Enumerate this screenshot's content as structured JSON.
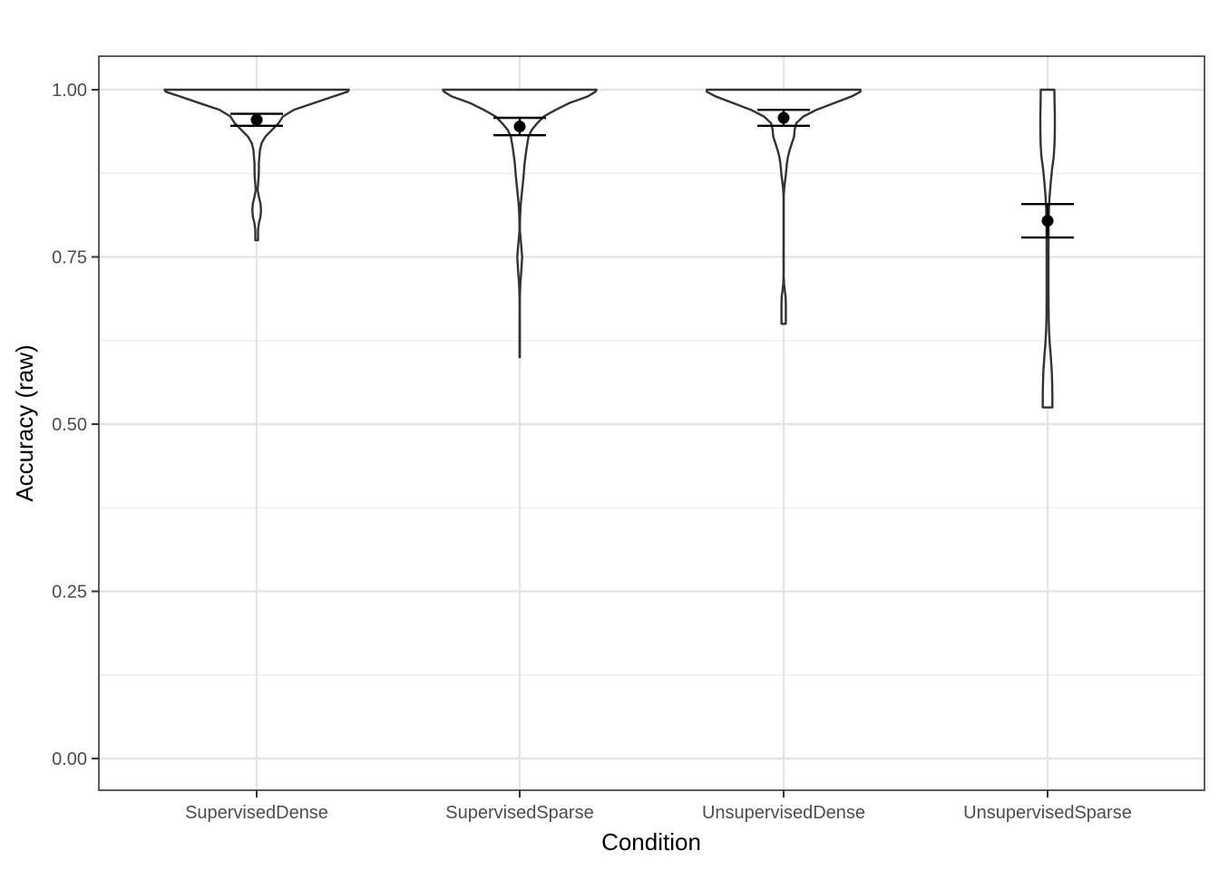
{
  "chart_data": {
    "type": "violin",
    "xlabel": "Condition",
    "ylabel": "Accuracy (raw)",
    "ylim": [
      -0.05,
      1.05
    ],
    "y_ticks": [
      0.0,
      0.25,
      0.5,
      0.75,
      1.0
    ],
    "y_tick_labels": [
      "0.00",
      "0.25",
      "0.50",
      "0.75",
      "1.00"
    ],
    "grid": true,
    "theme": "bw",
    "categories": [
      "SupervisedDense",
      "SupervisedSparse",
      "UnsupervisedDense",
      "UnsupervisedSparse"
    ],
    "summary": [
      {
        "category": "SupervisedDense",
        "mean": 0.955,
        "ci_low": 0.946,
        "ci_high": 0.964
      },
      {
        "category": "SupervisedSparse",
        "mean": 0.945,
        "ci_low": 0.932,
        "ci_high": 0.958
      },
      {
        "category": "UnsupervisedDense",
        "mean": 0.958,
        "ci_low": 0.946,
        "ci_high": 0.97
      },
      {
        "category": "UnsupervisedSparse",
        "mean": 0.804,
        "ci_low": 0.779,
        "ci_high": 0.829
      }
    ],
    "violins": [
      {
        "category": "SupervisedDense",
        "profile": [
          [
            1.0,
            0.84
          ],
          [
            0.997,
            0.83
          ],
          [
            0.99,
            0.7
          ],
          [
            0.98,
            0.52
          ],
          [
            0.97,
            0.34
          ],
          [
            0.96,
            0.24
          ],
          [
            0.95,
            0.2
          ],
          [
            0.94,
            0.14
          ],
          [
            0.93,
            0.08
          ],
          [
            0.92,
            0.045
          ],
          [
            0.91,
            0.03
          ],
          [
            0.9,
            0.025
          ],
          [
            0.89,
            0.02
          ],
          [
            0.88,
            0.02
          ],
          [
            0.87,
            0.018
          ],
          [
            0.86,
            0.013
          ],
          [
            0.85,
            0.008
          ],
          [
            0.84,
            0.02
          ],
          [
            0.83,
            0.035
          ],
          [
            0.82,
            0.04
          ],
          [
            0.81,
            0.035
          ],
          [
            0.8,
            0.02
          ],
          [
            0.79,
            0.012
          ],
          [
            0.775,
            0.012
          ]
        ]
      },
      {
        "category": "SupervisedSparse",
        "profile": [
          [
            1.0,
            0.7
          ],
          [
            0.997,
            0.69
          ],
          [
            0.99,
            0.62
          ],
          [
            0.98,
            0.45
          ],
          [
            0.97,
            0.33
          ],
          [
            0.96,
            0.22
          ],
          [
            0.95,
            0.16
          ],
          [
            0.94,
            0.11
          ],
          [
            0.93,
            0.08
          ],
          [
            0.91,
            0.06
          ],
          [
            0.89,
            0.045
          ],
          [
            0.87,
            0.035
          ],
          [
            0.85,
            0.022
          ],
          [
            0.83,
            0.01
          ],
          [
            0.81,
            0.003
          ],
          [
            0.79,
            0.002
          ],
          [
            0.77,
            0.012
          ],
          [
            0.75,
            0.022
          ],
          [
            0.73,
            0.015
          ],
          [
            0.71,
            0.006
          ],
          [
            0.69,
            0.002
          ],
          [
            0.67,
            0.001
          ],
          [
            0.65,
            0.002
          ],
          [
            0.63,
            0.002
          ],
          [
            0.61,
            0.002
          ],
          [
            0.6,
            0.002
          ]
        ]
      },
      {
        "category": "UnsupervisedDense",
        "profile": [
          [
            1.0,
            0.7
          ],
          [
            0.997,
            0.7
          ],
          [
            0.99,
            0.62
          ],
          [
            0.98,
            0.46
          ],
          [
            0.97,
            0.3
          ],
          [
            0.96,
            0.18
          ],
          [
            0.95,
            0.115
          ],
          [
            0.94,
            0.1
          ],
          [
            0.93,
            0.095
          ],
          [
            0.92,
            0.075
          ],
          [
            0.91,
            0.055
          ],
          [
            0.9,
            0.04
          ],
          [
            0.89,
            0.03
          ],
          [
            0.88,
            0.024
          ],
          [
            0.87,
            0.018
          ],
          [
            0.86,
            0.01
          ],
          [
            0.85,
            0.004
          ],
          [
            0.84,
            0.001
          ],
          [
            0.8,
            0.0008
          ],
          [
            0.75,
            0.0008
          ],
          [
            0.72,
            0.001
          ],
          [
            0.71,
            0.003
          ],
          [
            0.7,
            0.01
          ],
          [
            0.69,
            0.018
          ],
          [
            0.68,
            0.02
          ],
          [
            0.67,
            0.02
          ],
          [
            0.66,
            0.02
          ],
          [
            0.65,
            0.02
          ]
        ]
      },
      {
        "category": "UnsupervisedSparse",
        "profile": [
          [
            1.0,
            0.062
          ],
          [
            0.98,
            0.064
          ],
          [
            0.96,
            0.066
          ],
          [
            0.94,
            0.066
          ],
          [
            0.92,
            0.064
          ],
          [
            0.9,
            0.056
          ],
          [
            0.88,
            0.04
          ],
          [
            0.86,
            0.028
          ],
          [
            0.84,
            0.018
          ],
          [
            0.82,
            0.012
          ],
          [
            0.8,
            0.01
          ],
          [
            0.78,
            0.009
          ],
          [
            0.76,
            0.008
          ],
          [
            0.74,
            0.008
          ],
          [
            0.72,
            0.008
          ],
          [
            0.7,
            0.008
          ],
          [
            0.68,
            0.009
          ],
          [
            0.66,
            0.01
          ],
          [
            0.64,
            0.013
          ],
          [
            0.62,
            0.02
          ],
          [
            0.6,
            0.03
          ],
          [
            0.58,
            0.038
          ],
          [
            0.56,
            0.042
          ],
          [
            0.54,
            0.044
          ],
          [
            0.525,
            0.044
          ]
        ]
      }
    ]
  }
}
